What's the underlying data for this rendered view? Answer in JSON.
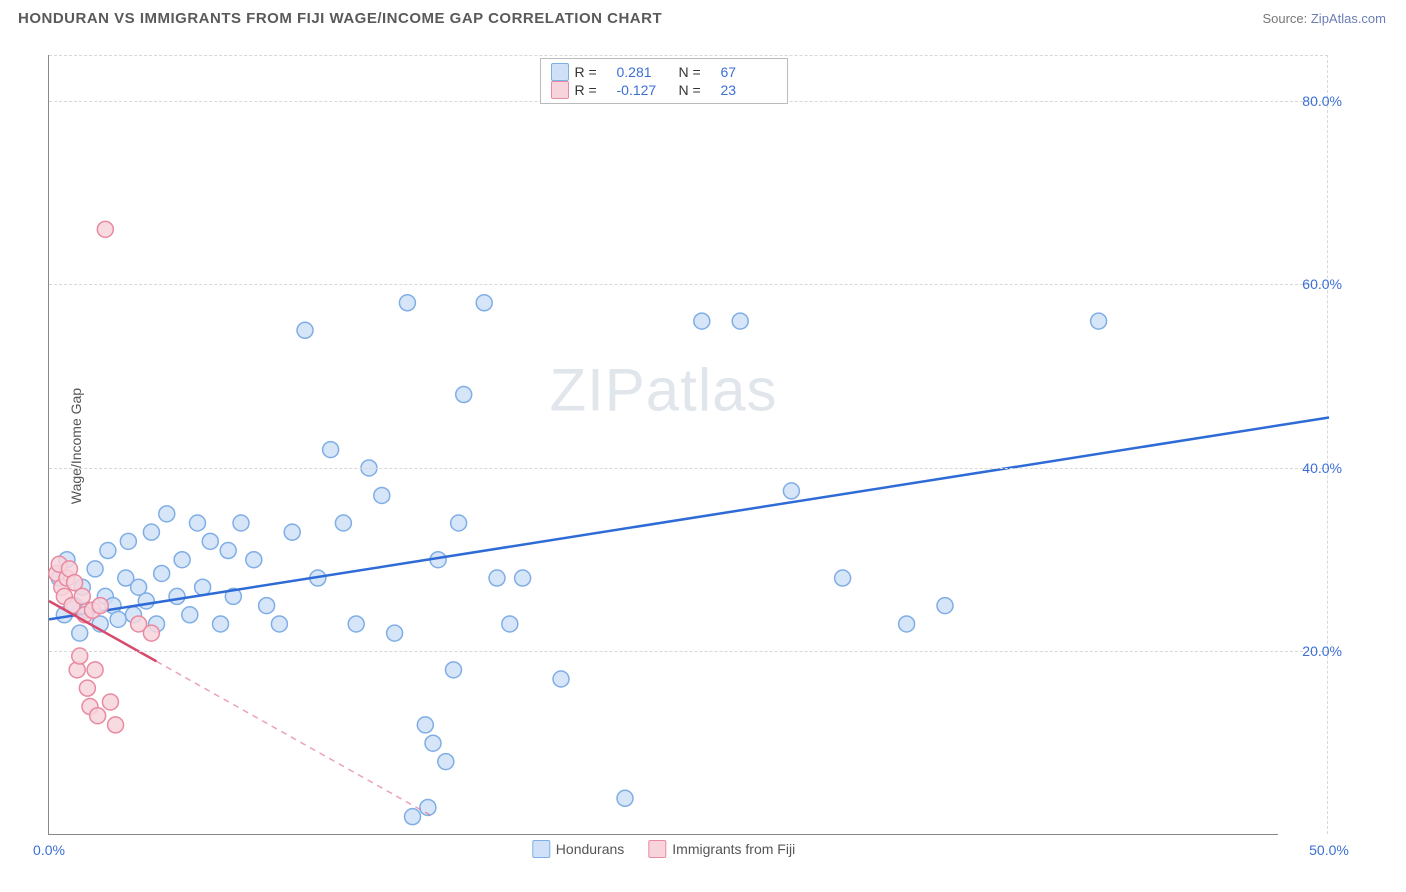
{
  "title": "HONDURAN VS IMMIGRANTS FROM FIJI WAGE/INCOME GAP CORRELATION CHART",
  "source_prefix": "Source: ",
  "source_link": "ZipAtlas.com",
  "y_axis_title": "Wage/Income Gap",
  "watermark": "ZIPatlas",
  "chart": {
    "type": "scatter",
    "xlim": [
      0,
      50
    ],
    "ylim": [
      0,
      85
    ],
    "x_ticks": [
      {
        "v": 0,
        "label": "0.0%"
      },
      {
        "v": 50,
        "label": "50.0%"
      }
    ],
    "y_ticks": [
      {
        "v": 20,
        "label": "20.0%"
      },
      {
        "v": 40,
        "label": "40.0%"
      },
      {
        "v": 60,
        "label": "60.0%"
      },
      {
        "v": 80,
        "label": "80.0%"
      }
    ],
    "marker_radius": 8,
    "marker_stroke_width": 1.5,
    "series": [
      {
        "name": "Hondurans",
        "fill": "#cfe0f7",
        "stroke": "#7faee6",
        "line_color": "#2e6bd6",
        "r_label": "R =",
        "r_value": "0.281",
        "n_label": "N =",
        "n_value": "67",
        "trend": {
          "x1": 0,
          "y1": 23.5,
          "x2": 50,
          "y2": 45.5,
          "solid_until_x": 50
        },
        "points": [
          [
            0.4,
            28
          ],
          [
            0.6,
            24
          ],
          [
            0.7,
            30
          ],
          [
            1.0,
            25
          ],
          [
            1.2,
            22
          ],
          [
            1.3,
            27
          ],
          [
            1.5,
            24.5
          ],
          [
            1.8,
            29
          ],
          [
            2.0,
            23
          ],
          [
            2.2,
            26
          ],
          [
            2.3,
            31
          ],
          [
            2.5,
            25
          ],
          [
            2.7,
            23.5
          ],
          [
            3.0,
            28
          ],
          [
            3.1,
            32
          ],
          [
            3.3,
            24
          ],
          [
            3.5,
            27
          ],
          [
            3.8,
            25.5
          ],
          [
            4.0,
            33
          ],
          [
            4.2,
            23
          ],
          [
            4.4,
            28.5
          ],
          [
            4.6,
            35
          ],
          [
            5.0,
            26
          ],
          [
            5.2,
            30
          ],
          [
            5.5,
            24
          ],
          [
            5.8,
            34
          ],
          [
            6.0,
            27
          ],
          [
            6.3,
            32
          ],
          [
            6.7,
            23
          ],
          [
            7.0,
            31
          ],
          [
            7.2,
            26
          ],
          [
            7.5,
            34
          ],
          [
            8.0,
            30
          ],
          [
            8.5,
            25
          ],
          [
            9.0,
            23
          ],
          [
            9.5,
            33
          ],
          [
            10.0,
            55
          ],
          [
            10.5,
            28
          ],
          [
            11.0,
            42
          ],
          [
            11.5,
            34
          ],
          [
            12.0,
            23
          ],
          [
            12.5,
            40
          ],
          [
            13.0,
            37
          ],
          [
            13.5,
            22
          ],
          [
            14.0,
            58
          ],
          [
            14.2,
            2
          ],
          [
            14.8,
            3
          ],
          [
            15.0,
            10
          ],
          [
            14.7,
            12
          ],
          [
            15.2,
            30
          ],
          [
            15.5,
            8
          ],
          [
            15.8,
            18
          ],
          [
            16.0,
            34
          ],
          [
            16.2,
            48
          ],
          [
            17.0,
            58
          ],
          [
            17.5,
            28
          ],
          [
            18.0,
            23
          ],
          [
            18.5,
            28
          ],
          [
            20.0,
            17
          ],
          [
            22.5,
            4
          ],
          [
            25.5,
            56
          ],
          [
            27.0,
            56
          ],
          [
            29.0,
            37.5
          ],
          [
            31.0,
            28
          ],
          [
            33.5,
            23
          ],
          [
            35.0,
            25
          ],
          [
            41.0,
            56
          ]
        ]
      },
      {
        "name": "Immigrants from Fiji",
        "fill": "#f7d4dc",
        "stroke": "#e88aa0",
        "line_color": "#d64a6e",
        "r_label": "R =",
        "r_value": "-0.127",
        "n_label": "N =",
        "n_value": "23",
        "trend": {
          "x1": 0,
          "y1": 25.5,
          "x2": 15,
          "y2": 2,
          "solid_until_x": 4.2
        },
        "points": [
          [
            0.3,
            28.5
          ],
          [
            0.4,
            29.5
          ],
          [
            0.5,
            27
          ],
          [
            0.6,
            26
          ],
          [
            0.7,
            28
          ],
          [
            0.8,
            29
          ],
          [
            0.9,
            25
          ],
          [
            1.0,
            27.5
          ],
          [
            1.1,
            18
          ],
          [
            1.2,
            19.5
          ],
          [
            1.3,
            26
          ],
          [
            1.4,
            24
          ],
          [
            1.5,
            16
          ],
          [
            1.6,
            14
          ],
          [
            1.7,
            24.5
          ],
          [
            1.8,
            18
          ],
          [
            1.9,
            13
          ],
          [
            2.0,
            25
          ],
          [
            2.2,
            66
          ],
          [
            2.4,
            14.5
          ],
          [
            2.6,
            12
          ],
          [
            3.5,
            23
          ],
          [
            4.0,
            22
          ]
        ]
      }
    ]
  },
  "legend_bottom": [
    {
      "label": "Hondurans",
      "fill": "#cfe0f7",
      "stroke": "#7faee6"
    },
    {
      "label": "Immigrants from Fiji",
      "fill": "#f7d4dc",
      "stroke": "#e88aa0"
    }
  ]
}
